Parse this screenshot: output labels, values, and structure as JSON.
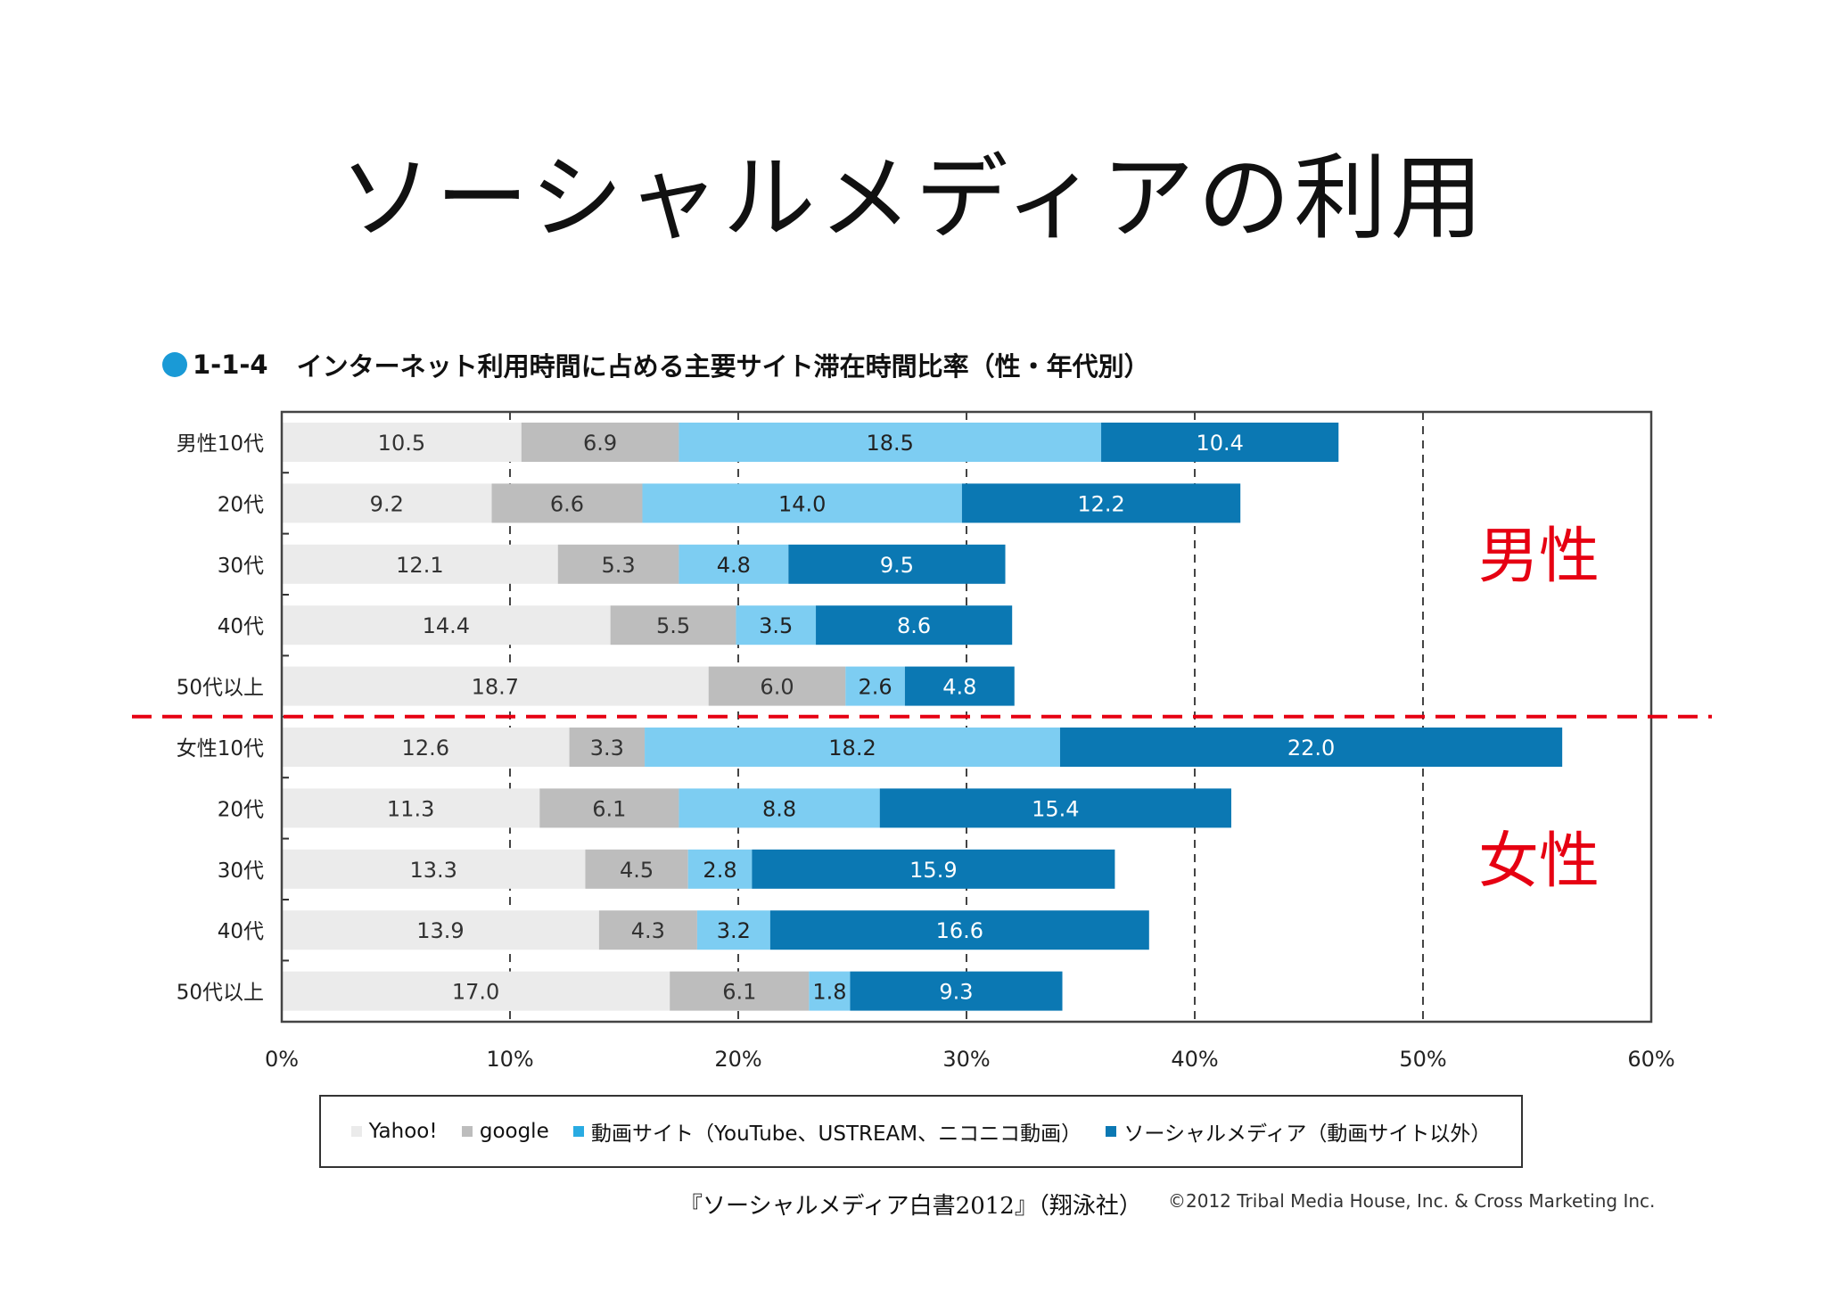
{
  "title": "ソーシャルメディアの利用",
  "chart_heading": {
    "code": "1-1-4",
    "text": "インターネット利用時間に占める主要サイト滞在時間比率（性・年代別）"
  },
  "colors": {
    "heading_dot": "#1a9ad6",
    "group_label": "#e60012",
    "divider": "#e60012"
  },
  "chart_data": {
    "type": "bar",
    "orientation": "horizontal",
    "stacked": true,
    "categories": [
      "男性10代",
      "20代",
      "30代",
      "40代",
      "50代以上",
      "女性10代",
      "20代",
      "30代",
      "40代",
      "50代以上"
    ],
    "series": [
      {
        "name": "Yahoo!",
        "color": "#ebebeb",
        "label_color": "#333333",
        "values": [
          10.5,
          9.2,
          12.1,
          14.4,
          18.7,
          12.6,
          11.3,
          13.3,
          13.9,
          17.0
        ]
      },
      {
        "name": "google",
        "color": "#bdbdbd",
        "label_color": "#333333",
        "values": [
          6.9,
          6.6,
          5.3,
          5.5,
          6.0,
          3.3,
          6.1,
          4.5,
          4.3,
          6.1
        ]
      },
      {
        "name": "動画サイト（YouTube、USTREAM、ニコニコ動画）",
        "color": "#7dcdf2",
        "label_color": "#222222",
        "values": [
          18.5,
          14.0,
          4.8,
          3.5,
          2.6,
          18.2,
          8.8,
          2.8,
          3.2,
          1.8
        ]
      },
      {
        "name": "ソーシャルメディア（動画サイト以外）",
        "color": "#0b78b3",
        "label_color": "#ffffff",
        "values": [
          10.4,
          12.2,
          9.5,
          8.6,
          4.8,
          22.0,
          15.4,
          15.9,
          16.6,
          9.3
        ]
      }
    ],
    "value_labels": [
      [
        "10.5",
        "6.9",
        "18.5",
        "10.4"
      ],
      [
        "9.2",
        "6.6",
        "14.0",
        "12.2"
      ],
      [
        "12.1",
        "5.3",
        "4.8",
        "9.5"
      ],
      [
        "14.4",
        "5.5",
        "3.5",
        "8.6"
      ],
      [
        "18.7",
        "6.0",
        "2.6",
        "4.8"
      ],
      [
        "12.6",
        "3.3",
        "18.2",
        "22.0"
      ],
      [
        "11.3",
        "6.1",
        "8.8",
        "15.4"
      ],
      [
        "13.3",
        "4.5",
        "2.8",
        "15.9"
      ],
      [
        "13.9",
        "4.3",
        "3.2",
        "16.6"
      ],
      [
        "17.0",
        "6.1",
        "1.8",
        "9.3"
      ]
    ],
    "xlim": [
      0,
      60
    ],
    "xticks": [
      0,
      10,
      20,
      30,
      40,
      50,
      60
    ],
    "xtick_labels": [
      "0%",
      "10%",
      "20%",
      "30%",
      "40%",
      "50%",
      "60%"
    ],
    "gridlines": "dashed",
    "groups": [
      {
        "label": "男性",
        "rows": [
          0,
          4
        ]
      },
      {
        "label": "女性",
        "rows": [
          5,
          9
        ]
      }
    ],
    "legend_position": "bottom"
  },
  "legend": [
    {
      "label": "Yahoo!",
      "color": "#ebebeb"
    },
    {
      "label": "google",
      "color": "#bdbdbd"
    },
    {
      "label": "動画サイト（YouTube、USTREAM、ニコニコ動画）",
      "color": "#29abe2"
    },
    {
      "label": "ソーシャルメディア（動画サイト以外）",
      "color": "#0b78b3"
    }
  ],
  "source": "『ソーシャルメディア白書2012』（翔泳社）",
  "copyright": "©2012 Tribal Media House, Inc. & Cross Marketing Inc."
}
